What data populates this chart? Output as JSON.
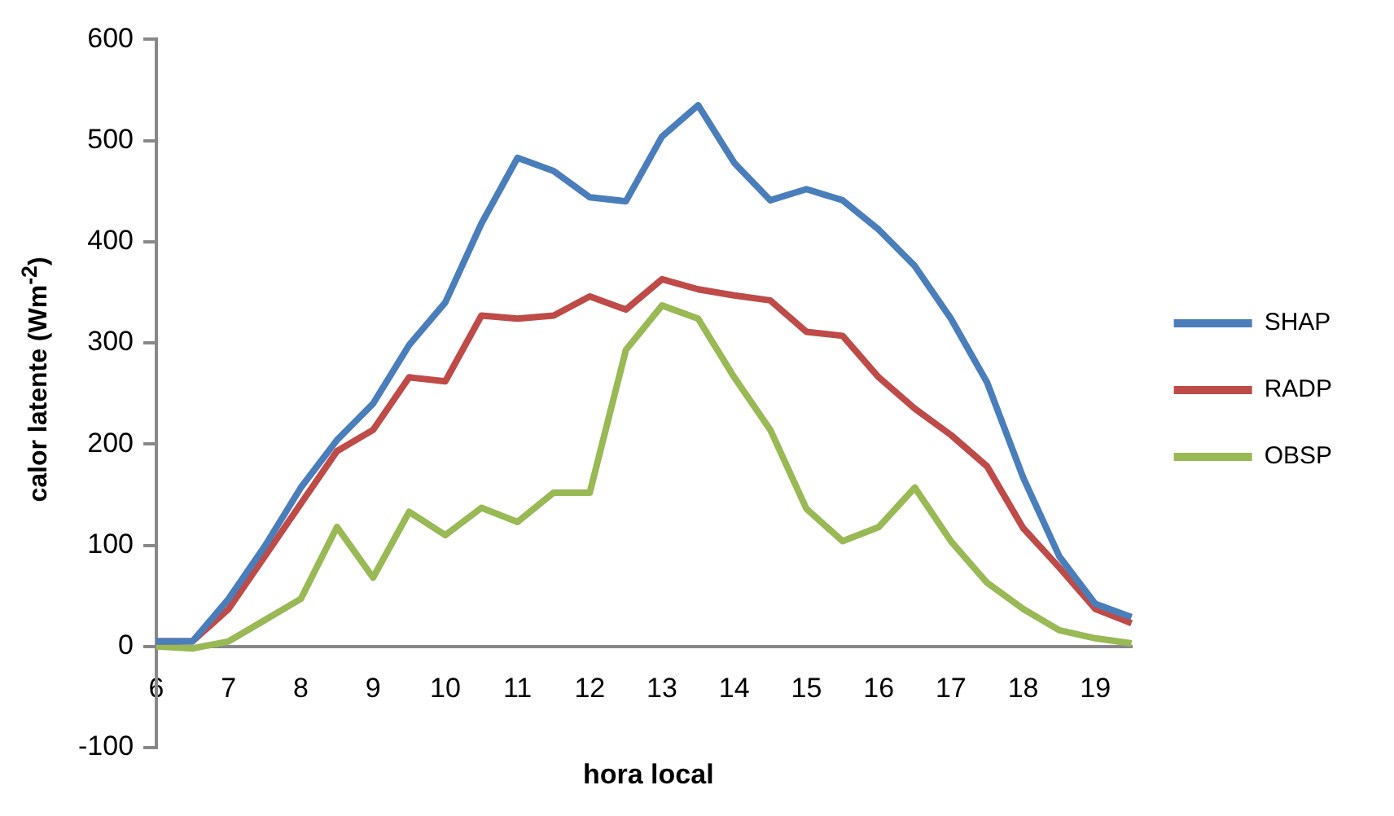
{
  "chart_data": {
    "type": "line",
    "xlabel": "hora local",
    "ylabel": "calor latente (Wm$^{-2}$)",
    "categories": [
      "6",
      null,
      "7",
      null,
      "8",
      null,
      "9",
      null,
      "10",
      null,
      "11",
      null,
      "12",
      null,
      "13",
      null,
      "14",
      null,
      "15",
      null,
      "16",
      null,
      "17",
      null,
      "18",
      null,
      "19",
      null
    ],
    "series": [
      {
        "name": "SHAP",
        "color": "#4a7ebb",
        "values": [
          5,
          5,
          47,
          99,
          157,
          204,
          240,
          298,
          340,
          418,
          483,
          470,
          444,
          440,
          504,
          535,
          478,
          441,
          452,
          441,
          412,
          376,
          324,
          261,
          167,
          89,
          42,
          29
        ]
      },
      {
        "name": "RADP",
        "color": "#be4b48",
        "values": [
          5,
          5,
          37,
          89,
          141,
          193,
          214,
          266,
          262,
          327,
          324,
          327,
          346,
          333,
          363,
          353,
          347,
          342,
          311,
          307,
          266,
          235,
          209,
          178,
          117,
          78,
          37,
          23
        ]
      },
      {
        "name": "OBSP",
        "color": "#98b954",
        "values": [
          0,
          -2,
          5,
          26,
          47,
          118,
          68,
          133,
          110,
          137,
          123,
          152,
          152,
          293,
          337,
          324,
          266,
          214,
          136,
          104,
          118,
          157,
          104,
          63,
          37,
          16,
          8,
          3
        ]
      }
    ],
    "ylim": [
      -100,
      600
    ],
    "yticks": [
      -100,
      0,
      100,
      200,
      300,
      400,
      500,
      600
    ],
    "grid": false,
    "legend": "right",
    "marker": "none",
    "line_style": "solid"
  }
}
